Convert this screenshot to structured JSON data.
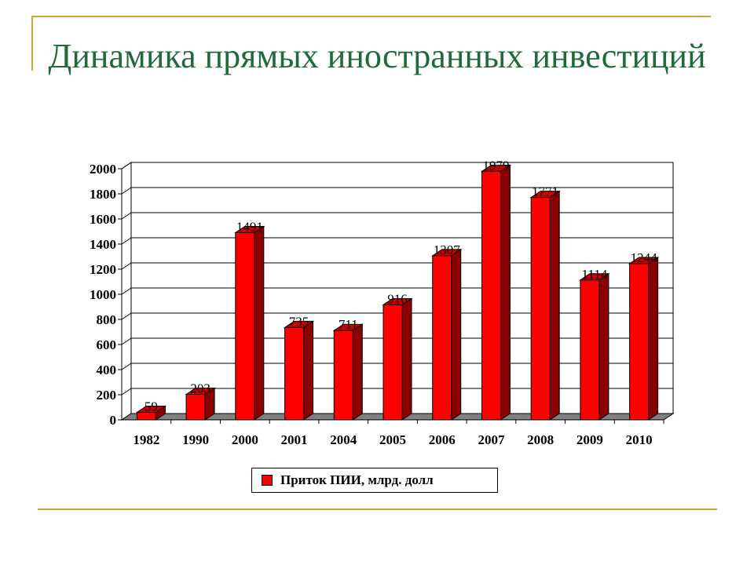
{
  "slide": {
    "title": "Динамика прямых иностранных инвестиций"
  },
  "colors": {
    "title": "#1e6b3a",
    "bar_front": "#ff0000",
    "bar_side": "#8b0000",
    "bar_top": "#cc0000",
    "accent_lines": "#c9a63c"
  },
  "chart_data": {
    "type": "bar",
    "categories": [
      "1982",
      "1990",
      "2000",
      "2001",
      "2004",
      "2005",
      "2006",
      "2007",
      "2008",
      "2009",
      "2010"
    ],
    "series": [
      {
        "name": "Приток ПИИ, млрд. долл",
        "values": [
          59,
          203,
          1491,
          735,
          711,
          916,
          1307,
          1979,
          1771,
          1114,
          1244
        ]
      }
    ],
    "ylim": [
      0,
      2000
    ],
    "yticks": [
      "0",
      "200",
      "400",
      "600",
      "800",
      "1000",
      "1200",
      "1400",
      "1600",
      "1800",
      "2000"
    ],
    "grid": true,
    "three_d": true,
    "legend_position": "bottom"
  },
  "legend": {
    "label": "Приток ПИИ, млрд. долл"
  }
}
